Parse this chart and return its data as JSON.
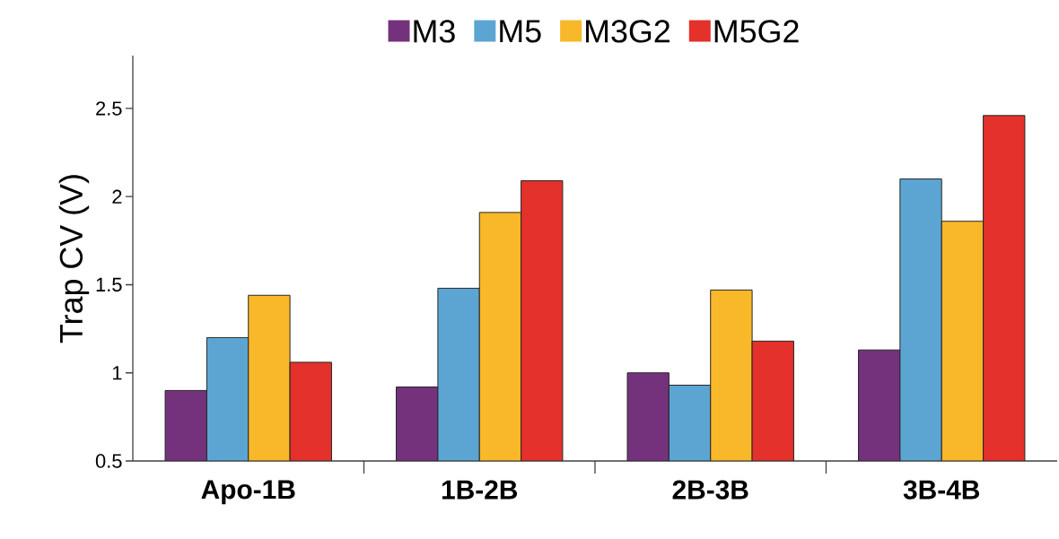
{
  "chart_data": {
    "type": "bar",
    "ylabel": "Trap CV (V)",
    "categories": [
      "Apo-1B",
      "1B-2B",
      "2B-3B",
      "3B-4B"
    ],
    "series": [
      {
        "name": "M3",
        "color": "#74327c",
        "values": [
          0.9,
          0.92,
          1.0,
          1.13
        ]
      },
      {
        "name": "M5",
        "color": "#5ca5d3",
        "values": [
          1.2,
          1.48,
          0.93,
          2.1
        ]
      },
      {
        "name": "M3G2",
        "color": "#f8b829",
        "values": [
          1.44,
          1.91,
          1.47,
          1.86
        ]
      },
      {
        "name": "M5G2",
        "color": "#e4312b",
        "values": [
          1.06,
          2.09,
          1.18,
          2.46
        ]
      }
    ],
    "ylim": [
      0.5,
      2.8
    ],
    "yticks": [
      0.5,
      1,
      1.5,
      2,
      2.5
    ],
    "grid": false,
    "legend": "top"
  }
}
